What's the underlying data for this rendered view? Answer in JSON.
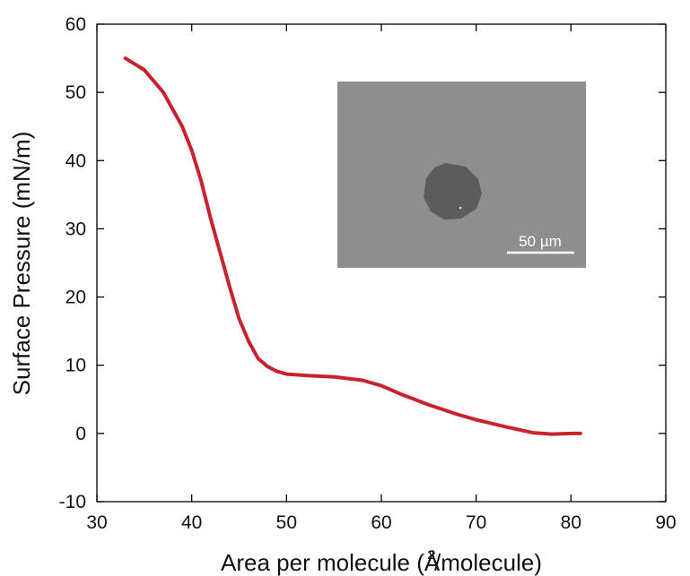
{
  "chart_data": {
    "type": "line",
    "title": "",
    "xlabel": "Area per molecule (Å/molecule)",
    "xlabel_superscript": "2",
    "ylabel": "Surface Pressure (mN/m)",
    "xlim": [
      30,
      90
    ],
    "ylim": [
      -10,
      60
    ],
    "xticks": [
      "30",
      "40",
      "50",
      "60",
      "70",
      "80",
      "90"
    ],
    "yticks": [
      "-10",
      "0",
      "10",
      "20",
      "30",
      "40",
      "50",
      "60"
    ],
    "grid": false,
    "series": [
      {
        "color": "#c8232c",
        "points": [
          [
            33,
            55.0
          ],
          [
            35,
            53.3
          ],
          [
            37,
            50.0
          ],
          [
            39,
            45.0
          ],
          [
            40,
            41.5
          ],
          [
            41,
            37.0
          ],
          [
            42,
            31.5
          ],
          [
            43,
            26.5
          ],
          [
            44,
            21.5
          ],
          [
            45,
            16.8
          ],
          [
            46,
            13.5
          ],
          [
            47,
            11.0
          ],
          [
            48,
            9.8
          ],
          [
            49,
            9.1
          ],
          [
            50,
            8.7
          ],
          [
            52,
            8.5
          ],
          [
            55,
            8.3
          ],
          [
            58,
            7.8
          ],
          [
            60,
            7.0
          ],
          [
            62,
            5.8
          ],
          [
            65,
            4.2
          ],
          [
            68,
            2.8
          ],
          [
            70,
            2.0
          ],
          [
            73,
            1.0
          ],
          [
            76,
            0.1
          ],
          [
            78,
            -0.1
          ],
          [
            80,
            0.0
          ],
          [
            81,
            0.0
          ]
        ]
      }
    ],
    "inset": {
      "description_type": "micrograph",
      "scale_bar_label": "50 µm",
      "background_color": "#8e8e8e",
      "domain_color": "#5c5c5c"
    }
  }
}
